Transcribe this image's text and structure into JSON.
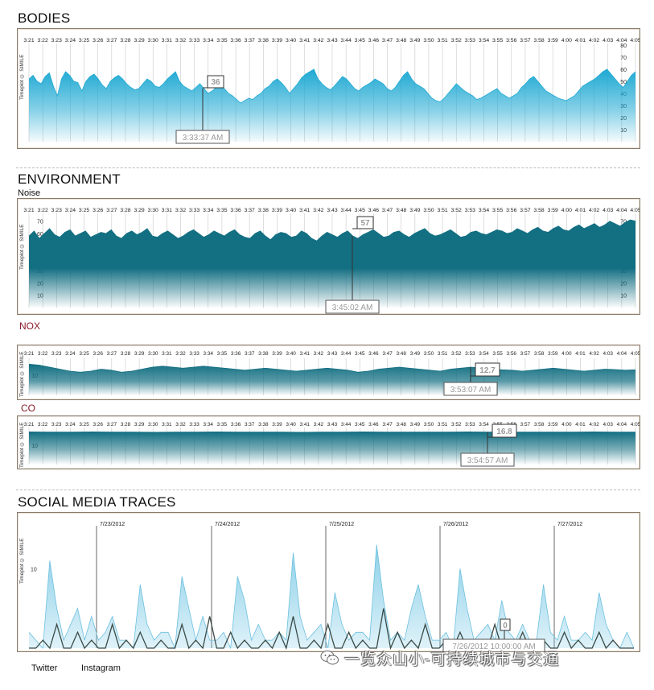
{
  "sections": {
    "bodies": {
      "title": "BODIES"
    },
    "environment": {
      "title": "ENVIRONMENT",
      "noise_label": "Noise",
      "nox_label": "NOX",
      "co_label": "CO"
    },
    "social": {
      "title": "SOCIAL MEDIA TRACES"
    }
  },
  "panel_watermark": "Timeplot © SIMILE",
  "legend": {
    "twitter": "Twitter",
    "instagram": "Instagram"
  },
  "watermark": {
    "text": "一览众山小-可持续城市与交通",
    "icon": "wechat-icon"
  },
  "colors": {
    "bodies": "#2ab3d8",
    "environment": "#136f82",
    "twitter": "#7fcbe6",
    "instagram": "#3a4a46",
    "frame": "#8b7b6b"
  },
  "chart_data": [
    {
      "id": "bodies",
      "type": "area",
      "title": "BODIES",
      "time_ticks": [
        "3:21",
        "3:22",
        "3:23",
        "3:24",
        "3:25",
        "3:26",
        "3:27",
        "3:28",
        "3:29",
        "3:30",
        "3:31",
        "3:32",
        "3:33",
        "3:34",
        "3:35",
        "3:36",
        "3:37",
        "3:38",
        "3:39",
        "3:40",
        "3:41",
        "3:42",
        "3:43",
        "3:44",
        "3:45",
        "3:46",
        "3:47",
        "3:48",
        "3:49",
        "3:50",
        "3:51",
        "3:52",
        "3:53",
        "3:54",
        "3:55",
        "3:56",
        "3:57",
        "3:58",
        "3:59",
        "4:00",
        "4:01",
        "4:02",
        "4:03",
        "4:04",
        "4:05"
      ],
      "y_ticks": [
        "80",
        "70",
        "60",
        "50",
        "40",
        "30",
        "20",
        "10"
      ],
      "ylim": [
        0,
        80
      ],
      "values": [
        52,
        55,
        50,
        48,
        54,
        57,
        46,
        38,
        52,
        58,
        55,
        50,
        49,
        42,
        50,
        54,
        56,
        52,
        47,
        44,
        50,
        53,
        55,
        52,
        48,
        45,
        43,
        44,
        48,
        52,
        50,
        46,
        45,
        48,
        52,
        55,
        58,
        50,
        46,
        44,
        42,
        45,
        48,
        44,
        40,
        42,
        45,
        46,
        44,
        40,
        38,
        35,
        32,
        34,
        36,
        35,
        38,
        40,
        44,
        46,
        50,
        52,
        49,
        45,
        40,
        44,
        48,
        53,
        56,
        58,
        60,
        52,
        48,
        45,
        43,
        46,
        50,
        54,
        52,
        48,
        44,
        42,
        45,
        47,
        49,
        52,
        50,
        48,
        44,
        42,
        45,
        50,
        55,
        58,
        52,
        48,
        46,
        44,
        40,
        36,
        34,
        33,
        36,
        40,
        44,
        48,
        45,
        42,
        40,
        38,
        35,
        36,
        38,
        40,
        42,
        44,
        40,
        38,
        36,
        38,
        40,
        45,
        48,
        52,
        54,
        50,
        46,
        42,
        40,
        38,
        36,
        35,
        34,
        36,
        38,
        42,
        46,
        48,
        50,
        52,
        55,
        58,
        60,
        56,
        52,
        48,
        45,
        50,
        55,
        58
      ],
      "callout": {
        "value": "36",
        "time": "3:33:37 AM"
      }
    },
    {
      "id": "noise",
      "type": "area",
      "title": "Noise",
      "time_ticks": [
        "3:21",
        "3:22",
        "3:23",
        "3:24",
        "3:25",
        "3:26",
        "3:27",
        "3:28",
        "3:29",
        "3:30",
        "3:31",
        "3:32",
        "3:33",
        "3:34",
        "3:35",
        "3:36",
        "3:37",
        "3:38",
        "3:39",
        "3:40",
        "3:41",
        "3:42",
        "3:43",
        "3:44",
        "3:45",
        "3:46",
        "3:47",
        "3:48",
        "3:49",
        "3:50",
        "3:51",
        "3:52",
        "3:53",
        "3:54",
        "3:55",
        "3:56",
        "3:57",
        "3:58",
        "3:59",
        "4:00",
        "4:01",
        "4:02",
        "4:03",
        "4:04",
        "4:05"
      ],
      "y_ticks": [
        "70",
        "60",
        "50",
        "40",
        "30",
        "20",
        "10"
      ],
      "ylim": [
        0,
        75
      ],
      "values": [
        58,
        62,
        56,
        60,
        64,
        59,
        57,
        61,
        63,
        58,
        60,
        62,
        57,
        59,
        61,
        60,
        63,
        58,
        56,
        60,
        62,
        59,
        61,
        64,
        58,
        57,
        60,
        62,
        59,
        56,
        58,
        61,
        63,
        60,
        57,
        59,
        62,
        60,
        58,
        61,
        63,
        59,
        57,
        56,
        60,
        62,
        58,
        55,
        59,
        61,
        60,
        57,
        58,
        62,
        60,
        56,
        54,
        58,
        61,
        59,
        57,
        60,
        62,
        58,
        56,
        59,
        61,
        63,
        60,
        57,
        58,
        61,
        62,
        59,
        57,
        60,
        62,
        64,
        60,
        58,
        59,
        61,
        63,
        60,
        57,
        58,
        61,
        62,
        60,
        59,
        61,
        63,
        62,
        60,
        61,
        64,
        62,
        60,
        63,
        65,
        62,
        61,
        64,
        66,
        63,
        62,
        65,
        67,
        64,
        66,
        68,
        65,
        67,
        70,
        68,
        66,
        69,
        71,
        70
      ],
      "callout": {
        "value": "57",
        "time": "3:45:02 AM"
      }
    },
    {
      "id": "nox",
      "type": "area",
      "title": "NOX",
      "time_ticks": [
        "3:21",
        "3:22",
        "3:23",
        "3:24",
        "3:25",
        "3:26",
        "3:27",
        "3:28",
        "3:29",
        "3:30",
        "3:31",
        "3:32",
        "3:33",
        "3:34",
        "3:35",
        "3:36",
        "3:37",
        "3:38",
        "3:39",
        "3:40",
        "3:41",
        "3:42",
        "3:43",
        "3:44",
        "3:45",
        "3:46",
        "3:47",
        "3:48",
        "3:49",
        "3:50",
        "3:51",
        "3:52",
        "3:53",
        "3:54",
        "3:55",
        "3:56",
        "3:57",
        "3:58",
        "3:59",
        "4:00",
        "4:01",
        "4:02",
        "4:03",
        "4:04",
        "4:05"
      ],
      "y_ticks": [
        "10"
      ],
      "ylim": [
        0,
        20
      ],
      "values": [
        15.5,
        15,
        14,
        13,
        12,
        11.5,
        12,
        13,
        12.5,
        11.5,
        12,
        13,
        14,
        14.5,
        14,
        13.5,
        14,
        14.5,
        14,
        13.5,
        13,
        12.5,
        13,
        13.5,
        13,
        12.5,
        12,
        12.5,
        13,
        13.5,
        13,
        12.5,
        11.5,
        12,
        13,
        13.5,
        14,
        13.5,
        13,
        12.5,
        12,
        13,
        13.5,
        14,
        13.5,
        13,
        12.7,
        12.5,
        12,
        12.5,
        13,
        13.5,
        13,
        12.5,
        12,
        12.5,
        13,
        12.8,
        12.5,
        12.7
      ],
      "callout": {
        "value": "12.7",
        "time": "3:53:07 AM"
      }
    },
    {
      "id": "co",
      "type": "area",
      "title": "CO",
      "time_ticks": [
        "3:21",
        "3:22",
        "3:23",
        "3:24",
        "3:25",
        "3:26",
        "3:27",
        "3:28",
        "3:29",
        "3:30",
        "3:31",
        "3:32",
        "3:33",
        "3:34",
        "3:35",
        "3:36",
        "3:37",
        "3:38",
        "3:39",
        "3:40",
        "3:41",
        "3:42",
        "3:43",
        "3:44",
        "3:45",
        "3:46",
        "3:47",
        "3:48",
        "3:49",
        "3:50",
        "3:51",
        "3:52",
        "3:53",
        "3:54",
        "3:55",
        "3:56",
        "3:57",
        "3:58",
        "3:59",
        "4:00",
        "4:01",
        "4:02",
        "4:03",
        "4:04",
        "4:05"
      ],
      "y_ticks": [
        "10"
      ],
      "ylim": [
        0,
        20
      ],
      "values": [
        16.9,
        16.8,
        16.8,
        16.9,
        16.8,
        16.8,
        16.7,
        16.8,
        16.8,
        16.9,
        16.8,
        16.8,
        16.8,
        16.7,
        16.8,
        16.8,
        16.9,
        16.8,
        16.8,
        16.8,
        16.8,
        16.9,
        16.8,
        16.8,
        16.8,
        16.8,
        16.8,
        16.9,
        16.8,
        16.8
      ],
      "callout": {
        "value": "16.8",
        "time": "3:54:57 AM"
      }
    },
    {
      "id": "social",
      "type": "line",
      "title": "SOCIAL MEDIA TRACES",
      "date_ticks": [
        "7/23/2012",
        "7/24/2012",
        "7/25/2012",
        "7/26/2012",
        "7/27/2012"
      ],
      "y_ticks": [
        "10"
      ],
      "ylim": [
        0,
        16
      ],
      "series": [
        {
          "name": "Twitter",
          "values": [
            2,
            1,
            0,
            11,
            5,
            1,
            3,
            5,
            1,
            4,
            1,
            2,
            4,
            1,
            1,
            0,
            8,
            3,
            1,
            2,
            2,
            0,
            9,
            5,
            1,
            4,
            1,
            1,
            2,
            0,
            9,
            6,
            1,
            3,
            1,
            1,
            2,
            1,
            12,
            4,
            1,
            2,
            3,
            0,
            7,
            3,
            1,
            2,
            2,
            1,
            13,
            6,
            1,
            2,
            1,
            5,
            8,
            4,
            1,
            1,
            2,
            0,
            10,
            5,
            1,
            2,
            3,
            1,
            6,
            2,
            1,
            3,
            1,
            1,
            8,
            2,
            1,
            4,
            1,
            1,
            2,
            1,
            7,
            3,
            1,
            0,
            2,
            0
          ]
        },
        {
          "name": "Instagram",
          "values": [
            0,
            0,
            1,
            0,
            3,
            0,
            0,
            2,
            0,
            1,
            0,
            0,
            3,
            0,
            1,
            0,
            2,
            0,
            0,
            1,
            0,
            0,
            3,
            0,
            1,
            0,
            4,
            0,
            0,
            2,
            0,
            1,
            0,
            0,
            1,
            0,
            2,
            0,
            4,
            0,
            0,
            1,
            0,
            3,
            0,
            0,
            2,
            0,
            1,
            0,
            0,
            5,
            0,
            2,
            0,
            1,
            0,
            3,
            0,
            0,
            1,
            0,
            2,
            0,
            0,
            1,
            0,
            3,
            0,
            1,
            0,
            2,
            0,
            0,
            1,
            0,
            0,
            2,
            0,
            1,
            0,
            0,
            2,
            0,
            1,
            0,
            0,
            0
          ]
        }
      ],
      "callout": {
        "value": "0",
        "time": "7/26/2012 10:00:00 AM"
      }
    }
  ]
}
